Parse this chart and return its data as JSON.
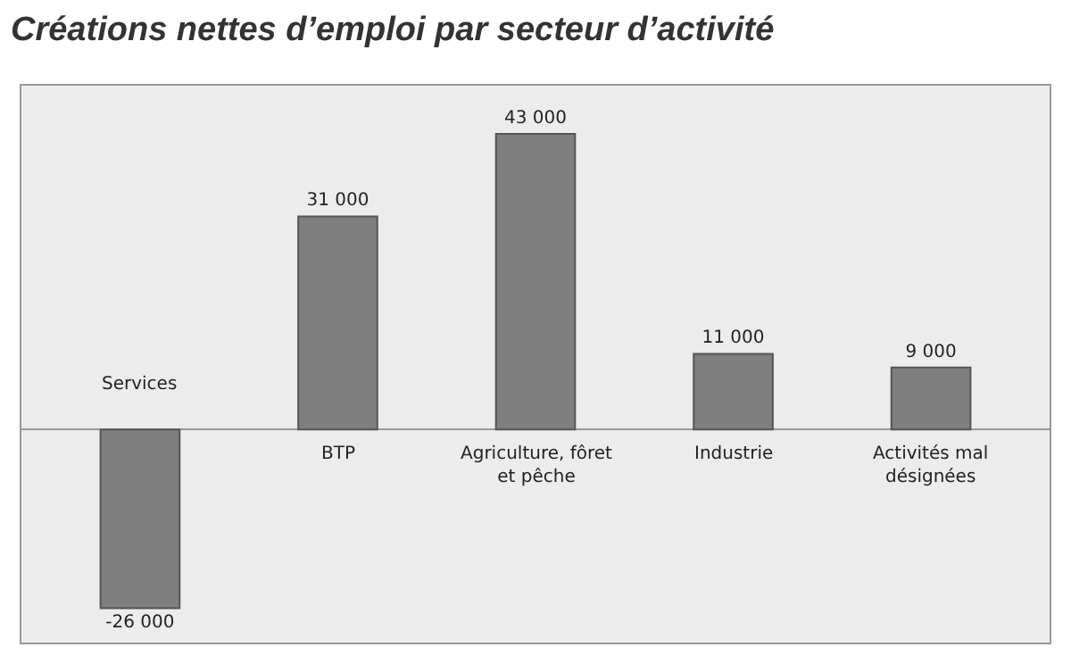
{
  "chart_data": {
    "type": "bar",
    "title": "Créations nettes d’emploi par secteur d’activité",
    "categories": [
      "Services",
      "BTP",
      "Agriculture, fôret\net pêche",
      "Industrie",
      "Activités mal\ndésignées"
    ],
    "values": [
      -26000,
      31000,
      43000,
      11000,
      9000
    ],
    "value_labels": [
      "-26 000",
      "31 000",
      "43 000",
      "11 000",
      "9 000"
    ],
    "color": "#7f7f7f",
    "ylim": [
      -31000,
      50000
    ]
  }
}
